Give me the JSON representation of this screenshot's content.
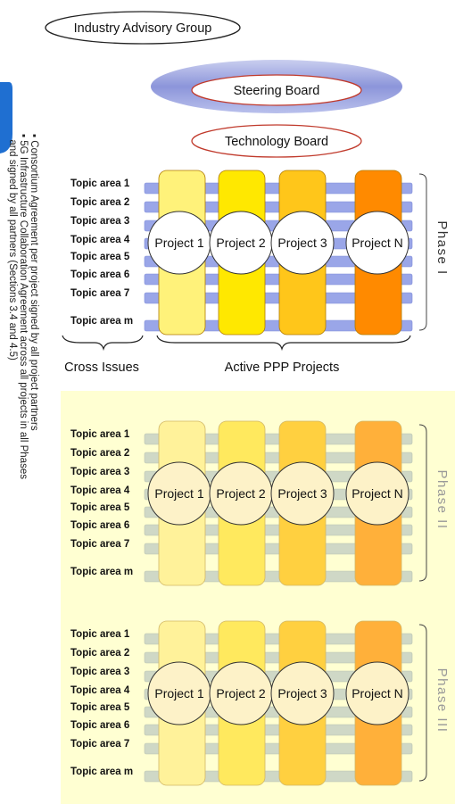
{
  "governance": {
    "industry_advisory_group": "Industry Advisory Group",
    "steering_board": "Steering Board",
    "technology_board": "Technology Board"
  },
  "topic_areas": [
    "Topic area 1",
    "Topic area 2",
    "Topic area 3",
    "Topic area 4",
    "Topic area 5",
    "Topic area 6",
    "Topic area 7",
    "Topic area m"
  ],
  "projects": [
    "Project 1",
    "Project 2",
    "Project 3",
    "Project N"
  ],
  "phases": [
    {
      "label": "Phase I",
      "active": true
    },
    {
      "label": "Phase II",
      "active": false
    },
    {
      "label": "Phase III",
      "active": false
    }
  ],
  "captions": {
    "cross_issues": "Cross Issues",
    "active_projects": "Active PPP Projects"
  },
  "side_notes": [
    "Consortium Agreement per project signed by all project partners",
    "5G Infrastructure Collaboration Agreement across all projects in all Phases",
    "and signed by all partners (Sections 3.4 and 4.5)"
  ],
  "colors": {
    "active_bars": [
      "#fff27a",
      "#ffe800",
      "#ffc61a",
      "#ff8a00"
    ],
    "inactive_bars": [
      "#fff29a",
      "#ffe95e",
      "#ffd040",
      "#ffb03a"
    ],
    "topic_stripe_active": "#9aa6e8",
    "topic_stripe_inactive": "#cfd8c6",
    "phase_bg_inactive": "#ffffd2",
    "oval_outline": "#c0392b",
    "accent_blue": "#1f6fd1"
  }
}
